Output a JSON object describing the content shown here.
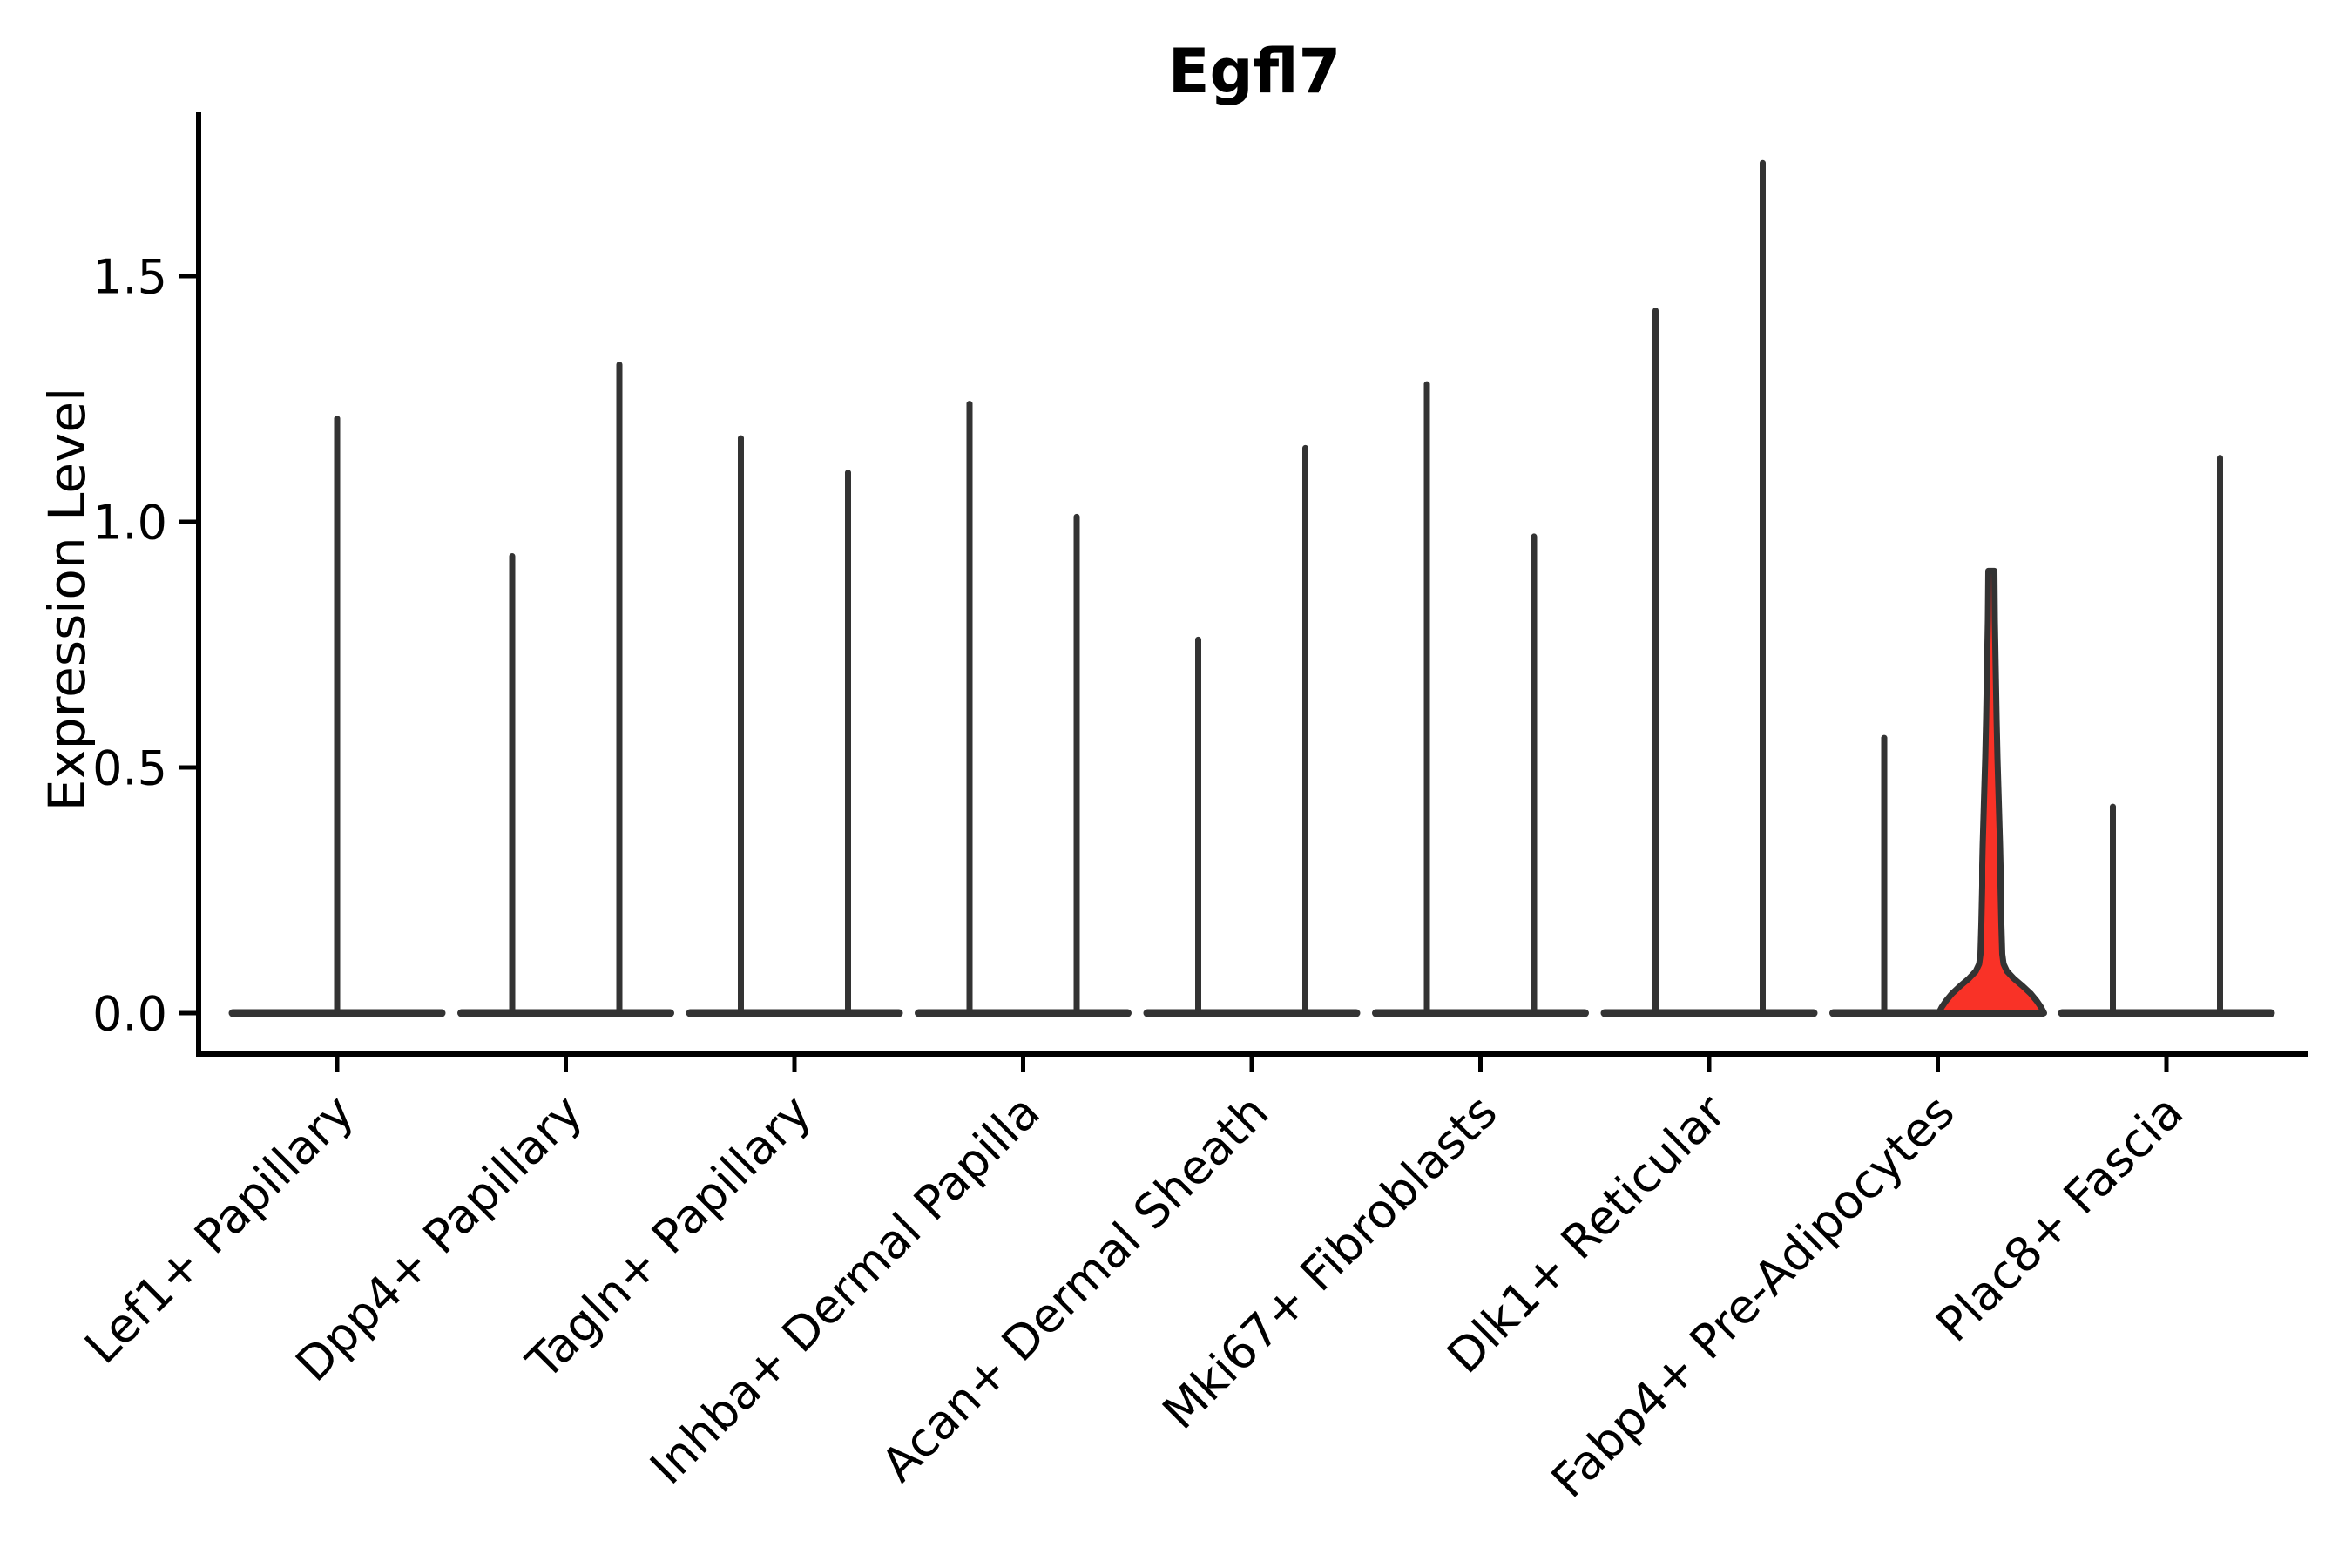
{
  "title": "Egfl7",
  "y_axis": {
    "label": "Expression Level",
    "ticks": [
      "0.0",
      "0.5",
      "1.0",
      "1.5"
    ],
    "tick_values": [
      0.0,
      0.5,
      1.0,
      1.5
    ]
  },
  "colors": {
    "highlight_fill": "#F93227",
    "violin_outline": "#333333",
    "axis": "#000000",
    "text": "#000000"
  },
  "chart_data": {
    "type": "violin",
    "title": "Egfl7",
    "xlabel": "",
    "ylabel": "Expression Level",
    "ylim": [
      -0.09,
      1.83
    ],
    "yticks": [
      0.0,
      0.5,
      1.0,
      1.5
    ],
    "grid": false,
    "legend": null,
    "categories": [
      "Lef1+ Papillary",
      "Dpp4+ Papillary",
      "Tagln+ Papillary",
      "Inhba+ Dermal Papilla",
      "Acan+ Dermal Sheath",
      "Mki67+ Fibroblasts",
      "Dlk1+ Reticular",
      "Fabp4+ Pre-Adipocytes",
      "Plac8+ Fascia"
    ],
    "series": [
      {
        "category": "Lef1+ Papillary",
        "violins": [
          {
            "side": "full",
            "max_expression": 1.21,
            "highlight": false
          }
        ]
      },
      {
        "category": "Dpp4+ Papillary",
        "violins": [
          {
            "side": "left",
            "max_expression": 0.93,
            "highlight": false
          },
          {
            "side": "right",
            "max_expression": 1.32,
            "highlight": false
          }
        ]
      },
      {
        "category": "Tagln+ Papillary",
        "violins": [
          {
            "side": "left",
            "max_expression": 1.17,
            "highlight": false
          },
          {
            "side": "right",
            "max_expression": 1.1,
            "highlight": false
          }
        ]
      },
      {
        "category": "Inhba+ Dermal Papilla",
        "violins": [
          {
            "side": "left",
            "max_expression": 1.24,
            "highlight": false
          },
          {
            "side": "right",
            "max_expression": 1.01,
            "highlight": false
          }
        ]
      },
      {
        "category": "Acan+ Dermal Sheath",
        "violins": [
          {
            "side": "left",
            "max_expression": 0.76,
            "highlight": false
          },
          {
            "side": "right",
            "max_expression": 1.15,
            "highlight": false
          }
        ]
      },
      {
        "category": "Mki67+ Fibroblasts",
        "violins": [
          {
            "side": "left",
            "max_expression": 1.28,
            "highlight": false
          },
          {
            "side": "right",
            "max_expression": 0.97,
            "highlight": false
          }
        ]
      },
      {
        "category": "Dlk1+ Reticular",
        "violins": [
          {
            "side": "left",
            "max_expression": 1.43,
            "highlight": false
          },
          {
            "side": "right",
            "max_expression": 1.73,
            "highlight": false
          }
        ]
      },
      {
        "category": "Fabp4+ Pre-Adipocytes",
        "violins": [
          {
            "side": "left",
            "max_expression": 0.56,
            "highlight": false
          },
          {
            "side": "right",
            "max_expression": 0.9,
            "highlight": true
          }
        ]
      },
      {
        "category": "Plac8+ Fascia",
        "violins": [
          {
            "side": "left",
            "max_expression": 0.42,
            "highlight": false
          },
          {
            "side": "right",
            "max_expression": 1.13,
            "highlight": false
          }
        ]
      }
    ],
    "highlight_violin": {
      "category": "Fabp4+ Pre-Adipocytes",
      "side": "right",
      "max_expression": 0.9,
      "fill_color": "#F93227"
    }
  }
}
